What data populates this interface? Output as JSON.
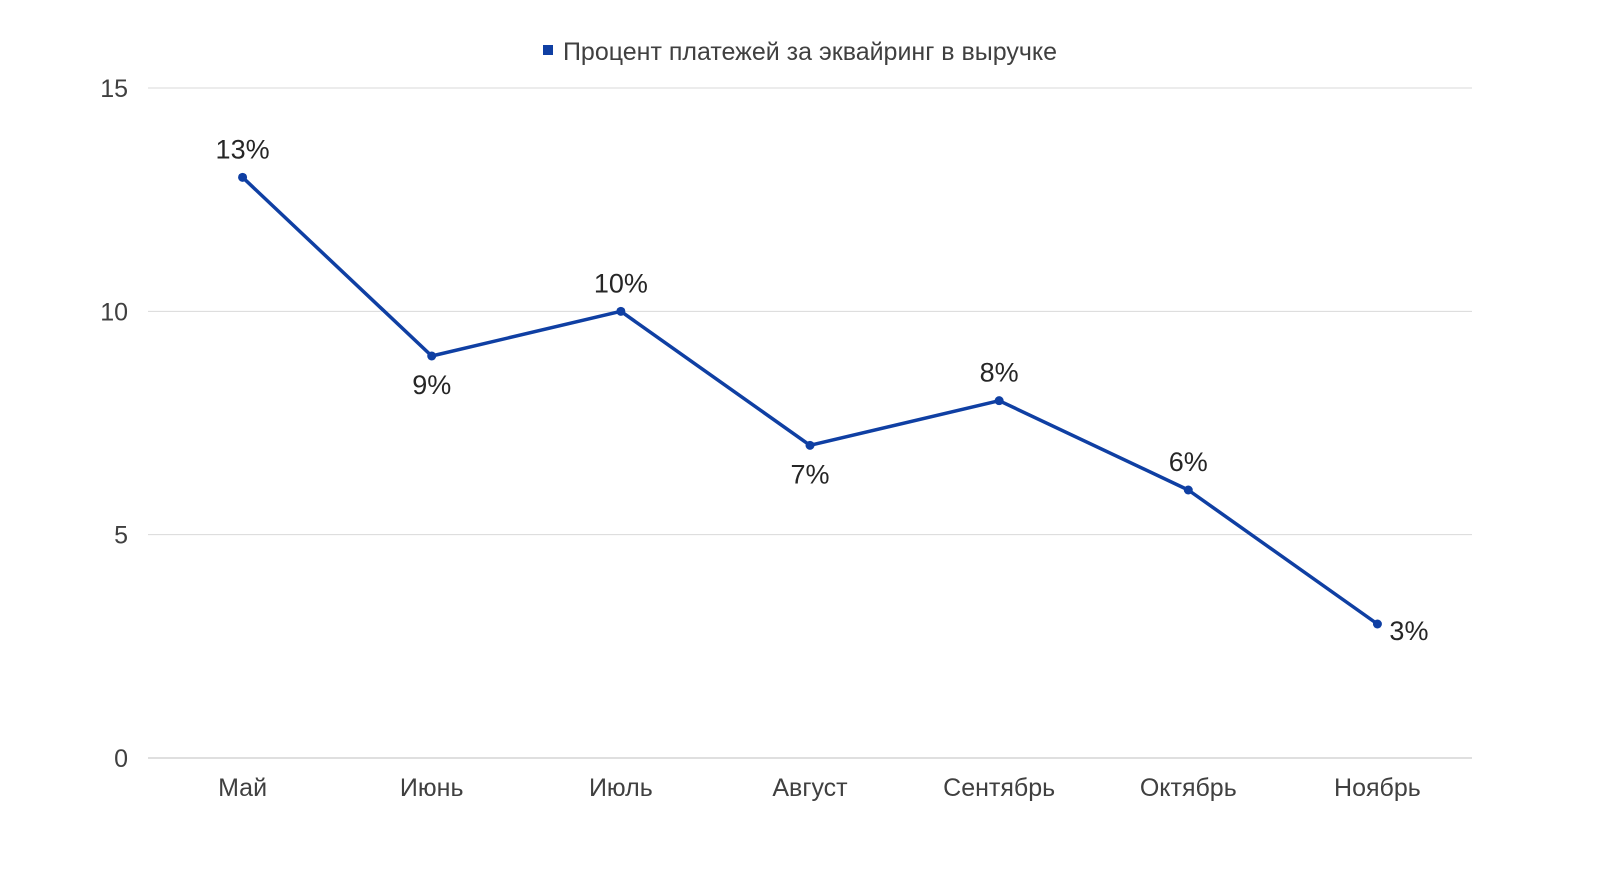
{
  "colors": {
    "series": "#0f3fa3",
    "grid": "#d9d9d9",
    "axis_text": "#404040",
    "data_label": "#262626"
  },
  "chart_data": {
    "type": "line",
    "categories": [
      "Май",
      "Июнь",
      "Июль",
      "Август",
      "Сентябрь",
      "Октябрь",
      "Ноябрь"
    ],
    "series": [
      {
        "name": "Процент платежей за эквайринг в выручке",
        "values": [
          13,
          9,
          10,
          7,
          8,
          6,
          3
        ],
        "data_labels": [
          "13%",
          "9%",
          "10%",
          "7%",
          "8%",
          "6%",
          "3%"
        ],
        "label_positions": [
          "above",
          "below",
          "above",
          "below",
          "above",
          "above",
          "right"
        ]
      }
    ],
    "title": "",
    "xlabel": "",
    "ylabel": "",
    "ylim": [
      0,
      15
    ],
    "yticks": [
      0,
      5,
      10,
      15
    ],
    "grid": true,
    "legend": "top-center"
  }
}
